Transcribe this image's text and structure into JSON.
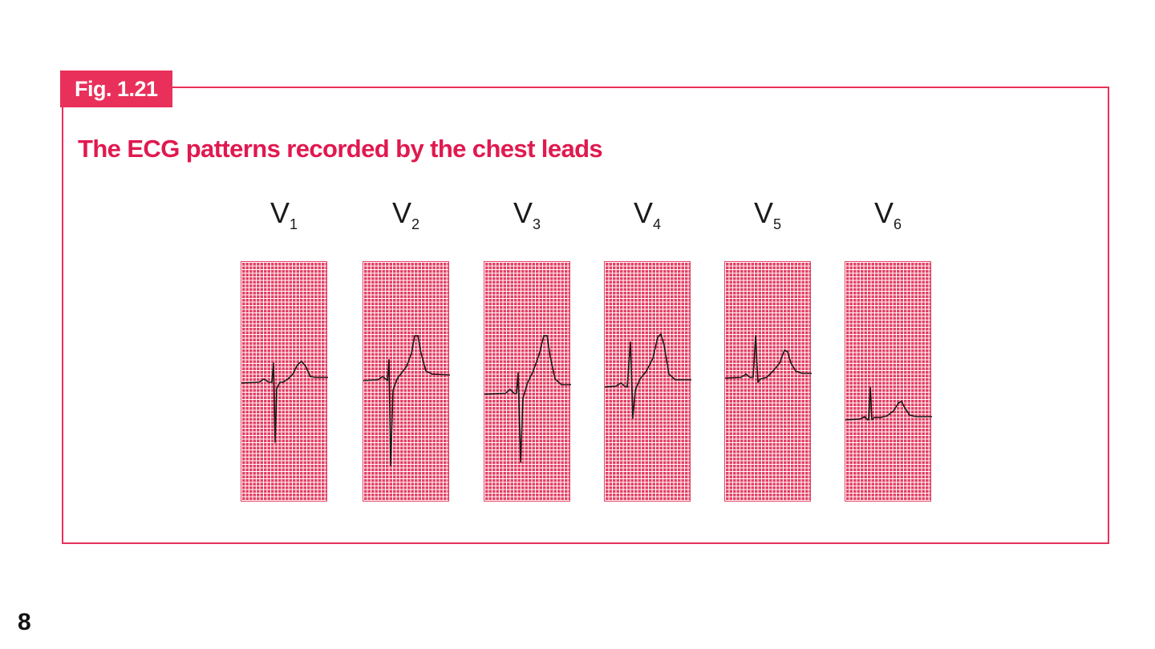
{
  "figure": {
    "tag": "Fig. 1.21",
    "title": "The ECG patterns recorded by the chest leads"
  },
  "leads": [
    {
      "letter": "V",
      "number": "1"
    },
    {
      "letter": "V",
      "number": "2"
    },
    {
      "letter": "V",
      "number": "3"
    },
    {
      "letter": "V",
      "number": "4"
    },
    {
      "letter": "V",
      "number": "5"
    },
    {
      "letter": "V",
      "number": "6"
    }
  ],
  "page_number": "8",
  "colors": {
    "accent": "#e8305a",
    "grid_paper": "#e44064",
    "trace": "#1a1a1a"
  }
}
